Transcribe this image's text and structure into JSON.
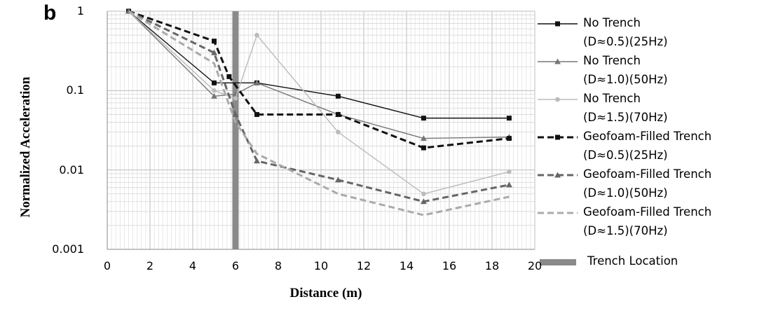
{
  "panel_label": "b",
  "chart_data": {
    "type": "line",
    "yscale": "log",
    "title": "",
    "xlabel": "Distance (m)",
    "ylabel": "Normalized Acceleration",
    "xlim": [
      0,
      20
    ],
    "ylim": [
      0.001,
      1
    ],
    "x_ticks": [
      "0",
      "2",
      "4",
      "6",
      "8",
      "10",
      "12",
      "14",
      "16",
      "18",
      "20"
    ],
    "y_ticks": [
      "1",
      "0.1",
      "0.01",
      "0.001"
    ],
    "grid": true,
    "legend_position": "right",
    "series": [
      {
        "name_line1": "No Trench",
        "name_line2": "(D≈0.5)(25Hz)",
        "color": "#111111",
        "dash": "solid",
        "marker": "square",
        "x": [
          1,
          5,
          7,
          10.8,
          14.8,
          18.8
        ],
        "y": [
          1,
          0.125,
          0.125,
          0.085,
          0.045,
          0.045
        ]
      },
      {
        "name_line1": "No Trench",
        "name_line2": "(D≈1.0)(50Hz)",
        "color": "#777777",
        "dash": "solid",
        "marker": "triangle",
        "x": [
          1,
          5,
          6,
          7,
          10.8,
          14.8,
          18.8
        ],
        "y": [
          1,
          0.085,
          0.09,
          0.125,
          0.05,
          0.025,
          0.026
        ]
      },
      {
        "name_line1": "No Trench",
        "name_line2": "(D≈1.5)(70Hz)",
        "color": "#bbbbbb",
        "dash": "solid",
        "marker": "circle",
        "x": [
          1,
          5,
          6,
          7,
          10.8,
          14.8,
          18.8
        ],
        "y": [
          1,
          0.1,
          0.08,
          0.5,
          0.03,
          0.005,
          0.0095
        ]
      },
      {
        "name_line1": "Geofoam-Filled Trench",
        "name_line2": "(D≈0.5)(25Hz)",
        "color": "#111111",
        "dash": "dashed",
        "marker": "square",
        "x": [
          1,
          5,
          5.7,
          7,
          10.8,
          14.8,
          18.8
        ],
        "y": [
          1,
          0.42,
          0.15,
          0.05,
          0.05,
          0.019,
          0.025
        ]
      },
      {
        "name_line1": "Geofoam-Filled Trench",
        "name_line2": "(D≈1.0)(50Hz)",
        "color": "#666666",
        "dash": "dashed",
        "marker": "triangle",
        "x": [
          1,
          5,
          6,
          7,
          10.8,
          14.8,
          18.8
        ],
        "y": [
          1,
          0.3,
          0.05,
          0.013,
          0.0075,
          0.004,
          0.0065
        ]
      },
      {
        "name_line1": "Geofoam-Filled Trench",
        "name_line2": "(D≈1.5)(70Hz)",
        "color": "#aaaaaa",
        "dash": "dashed",
        "marker": "none",
        "x": [
          1,
          5,
          6,
          7,
          10.8,
          14.8,
          18.8
        ],
        "y": [
          1,
          0.22,
          0.04,
          0.016,
          0.005,
          0.0027,
          0.0046
        ]
      }
    ],
    "trench": {
      "label": "Trench Location",
      "x": 6,
      "color": "#8a8a8a"
    }
  }
}
